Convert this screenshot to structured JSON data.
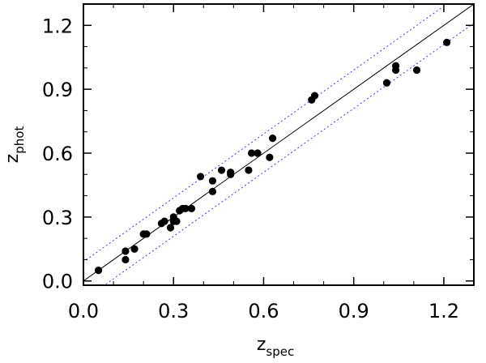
{
  "chart_data": {
    "type": "scatter",
    "xlabel": {
      "base": "z",
      "sub": "spec"
    },
    "ylabel": {
      "base": "z",
      "sub": "phot"
    },
    "xlim": [
      0.0,
      1.3
    ],
    "ylim": [
      -0.02,
      1.3
    ],
    "xticks": [
      "0.0",
      "0.3",
      "0.6",
      "0.9",
      "1.2"
    ],
    "xtick_values": [
      0.0,
      0.3,
      0.6,
      0.9,
      1.2
    ],
    "yticks": [
      "0.0",
      "0.3",
      "0.6",
      "0.9",
      "1.2"
    ],
    "ytick_values": [
      0.0,
      0.3,
      0.6,
      0.9,
      1.2
    ],
    "grid": false,
    "reference_lines": [
      {
        "style": "solid",
        "color": "#000000",
        "offset": 0.0
      },
      {
        "style": "dotted",
        "color": "#3b3bdc",
        "offset": 0.09
      },
      {
        "style": "dotted",
        "color": "#3b3bdc",
        "offset": -0.09
      }
    ],
    "marker_color": "#000000",
    "points": [
      {
        "x": 0.05,
        "y": 0.05
      },
      {
        "x": 0.14,
        "y": 0.1
      },
      {
        "x": 0.14,
        "y": 0.14
      },
      {
        "x": 0.17,
        "y": 0.15
      },
      {
        "x": 0.2,
        "y": 0.22
      },
      {
        "x": 0.21,
        "y": 0.22
      },
      {
        "x": 0.26,
        "y": 0.27
      },
      {
        "x": 0.27,
        "y": 0.28
      },
      {
        "x": 0.29,
        "y": 0.25
      },
      {
        "x": 0.3,
        "y": 0.3
      },
      {
        "x": 0.3,
        "y": 0.28
      },
      {
        "x": 0.31,
        "y": 0.28
      },
      {
        "x": 0.32,
        "y": 0.33
      },
      {
        "x": 0.33,
        "y": 0.34
      },
      {
        "x": 0.34,
        "y": 0.34
      },
      {
        "x": 0.36,
        "y": 0.34
      },
      {
        "x": 0.39,
        "y": 0.49
      },
      {
        "x": 0.43,
        "y": 0.47
      },
      {
        "x": 0.43,
        "y": 0.42
      },
      {
        "x": 0.46,
        "y": 0.52
      },
      {
        "x": 0.49,
        "y": 0.51
      },
      {
        "x": 0.49,
        "y": 0.5
      },
      {
        "x": 0.55,
        "y": 0.52
      },
      {
        "x": 0.56,
        "y": 0.6
      },
      {
        "x": 0.58,
        "y": 0.6
      },
      {
        "x": 0.62,
        "y": 0.58
      },
      {
        "x": 0.63,
        "y": 0.67
      },
      {
        "x": 0.76,
        "y": 0.85
      },
      {
        "x": 0.77,
        "y": 0.87
      },
      {
        "x": 1.01,
        "y": 0.93
      },
      {
        "x": 1.04,
        "y": 0.99
      },
      {
        "x": 1.04,
        "y": 1.01
      },
      {
        "x": 1.11,
        "y": 0.99
      },
      {
        "x": 1.21,
        "y": 1.12
      }
    ]
  }
}
